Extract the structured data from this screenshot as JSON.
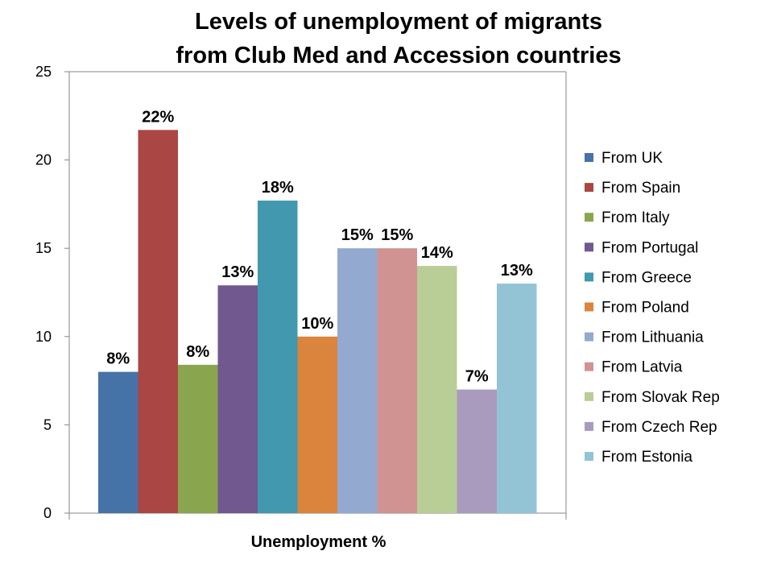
{
  "chart_data": {
    "type": "bar",
    "title_line1": "Levels of unemployment of migrants",
    "title_line2": "from Club Med and Accession countries",
    "xlabel": "Unemployment %",
    "ylabel": "",
    "ylim": [
      0,
      25
    ],
    "yticks": [
      0,
      5,
      10,
      15,
      20,
      25
    ],
    "legend_position": "right",
    "grid": false,
    "series": [
      {
        "name": "From UK",
        "value": 8,
        "label": "8%",
        "color": "#4572A7"
      },
      {
        "name": "From Spain",
        "value": 21.7,
        "label": "22%",
        "color": "#AA4643"
      },
      {
        "name": "From Italy",
        "value": 8.4,
        "label": "8%",
        "color": "#89A54E"
      },
      {
        "name": "From Portugal",
        "value": 12.9,
        "label": "13%",
        "color": "#71588F"
      },
      {
        "name": "From Greece",
        "value": 17.7,
        "label": "18%",
        "color": "#4198AF"
      },
      {
        "name": "From Poland",
        "value": 10,
        "label": "10%",
        "color": "#DB843D"
      },
      {
        "name": "From Lithuania",
        "value": 15,
        "label": "15%",
        "color": "#93A9CF"
      },
      {
        "name": "From Latvia",
        "value": 15,
        "label": "15%",
        "color": "#D19392"
      },
      {
        "name": "From Slovak Rep",
        "value": 14,
        "label": "14%",
        "color": "#B9CD96"
      },
      {
        "name": "From Czech Rep",
        "value": 7,
        "label": "7%",
        "color": "#A99BBD"
      },
      {
        "name": "From Estonia",
        "value": 13,
        "label": "13%",
        "color": "#92C4D6"
      }
    ]
  }
}
